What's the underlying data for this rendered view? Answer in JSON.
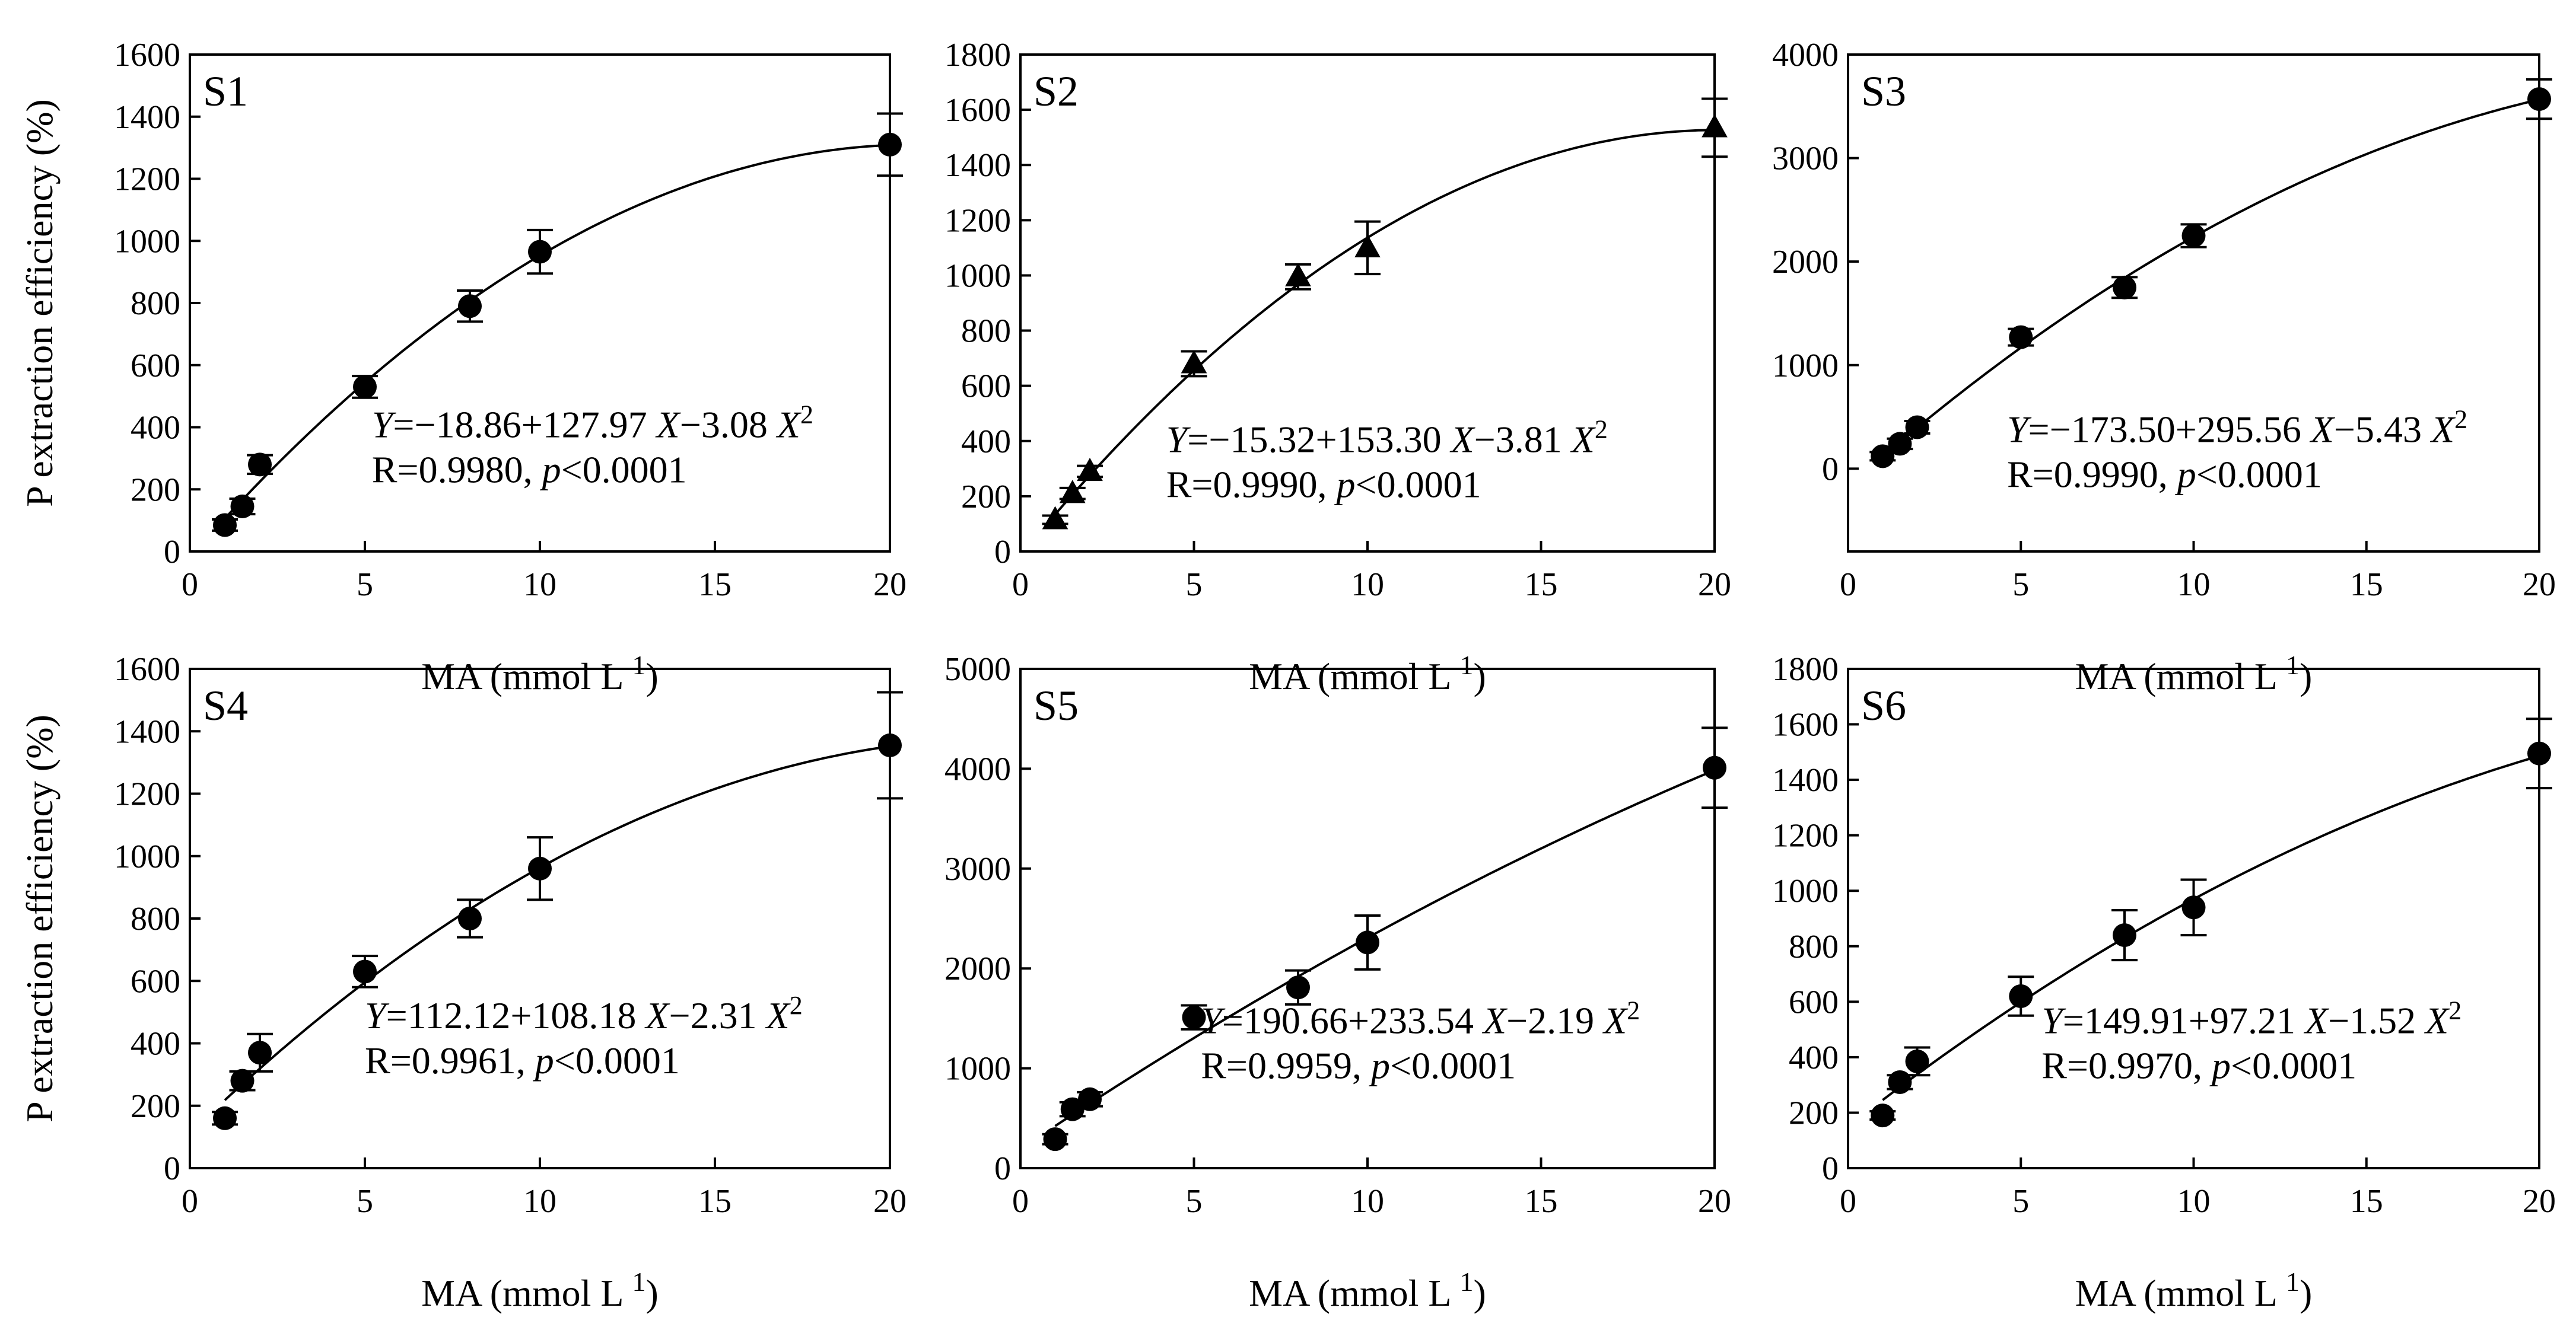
{
  "chart_data": [
    {
      "type": "scatter",
      "panel": "S1",
      "marker": "circle",
      "xlabel": "MA (mmol L",
      "xlabel_sup": "1",
      "ylabel": "P extraction efficiency (%)",
      "xlim": [
        0,
        20
      ],
      "ylim": [
        0,
        1600
      ],
      "xticks": [
        0,
        5,
        10,
        15,
        20
      ],
      "yticks": [
        0,
        200,
        400,
        600,
        800,
        1000,
        1200,
        1400,
        1600
      ],
      "x": [
        1,
        1.5,
        2,
        5,
        8,
        10,
        20
      ],
      "y": [
        85,
        145,
        280,
        530,
        790,
        965,
        1310
      ],
      "yerr": [
        18,
        25,
        30,
        35,
        50,
        70,
        100
      ],
      "fit": {
        "a": -18.86,
        "b": 127.97,
        "c": -3.08
      },
      "eq_text": [
        "Y",
        "=−18.86+127.97 ",
        "X",
        "−3.08 ",
        "X",
        "2"
      ],
      "r_text": [
        "R=0.9980, ",
        "p",
        "<0.0001"
      ]
    },
    {
      "type": "scatter",
      "panel": "S2",
      "marker": "triangle",
      "xlabel": "MA (mmol L",
      "xlabel_sup": "1",
      "ylabel": "",
      "xlim": [
        0,
        20
      ],
      "ylim": [
        0,
        1800
      ],
      "xticks": [
        0,
        5,
        10,
        15,
        20
      ],
      "yticks": [
        0,
        200,
        400,
        600,
        800,
        1000,
        1200,
        1400,
        1600,
        1800
      ],
      "x": [
        1,
        1.5,
        2,
        5,
        8,
        10,
        20
      ],
      "y": [
        115,
        210,
        290,
        680,
        995,
        1100,
        1535
      ],
      "yerr": [
        15,
        20,
        20,
        45,
        45,
        95,
        105
      ],
      "fit": {
        "a": -15.32,
        "b": 153.3,
        "c": -3.81
      },
      "eq_text": [
        "Y",
        "=−15.32+153.30 ",
        "X",
        "−3.81 ",
        "X",
        "2"
      ],
      "r_text": [
        "R=0.9990, ",
        "p",
        "<0.0001"
      ]
    },
    {
      "type": "scatter",
      "panel": "S3",
      "marker": "circle",
      "xlabel": "MA (mmol L",
      "xlabel_sup": "1",
      "ylabel": "",
      "xlim": [
        0,
        20
      ],
      "ylim": [
        -800,
        4000
      ],
      "xticks": [
        0,
        5,
        10,
        15,
        20
      ],
      "yticks": [
        0,
        1000,
        2000,
        3000,
        4000
      ],
      "x": [
        1,
        1.5,
        2,
        5,
        8,
        10,
        20
      ],
      "y": [
        120,
        240,
        400,
        1270,
        1750,
        2250,
        3570
      ],
      "yerr": [
        40,
        50,
        60,
        80,
        100,
        110,
        190
      ],
      "fit": {
        "a": -173.5,
        "b": 295.56,
        "c": -5.43
      },
      "eq_text": [
        "Y",
        "=−173.50+295.56 ",
        "X",
        "−5.43 ",
        "X",
        "2"
      ],
      "r_text": [
        "R=0.9990, ",
        "p",
        "<0.0001"
      ]
    },
    {
      "type": "scatter",
      "panel": "S4",
      "marker": "circle",
      "xlabel": "MA (mmol L",
      "xlabel_sup": "1",
      "ylabel": "P extraction efficiency (%)",
      "xlim": [
        0,
        20
      ],
      "ylim": [
        0,
        1600
      ],
      "xticks": [
        0,
        5,
        10,
        15,
        20
      ],
      "yticks": [
        0,
        200,
        400,
        600,
        800,
        1000,
        1200,
        1400,
        1600
      ],
      "x": [
        1,
        1.5,
        2,
        5,
        8,
        10,
        20
      ],
      "y": [
        160,
        280,
        370,
        630,
        800,
        960,
        1355
      ],
      "yerr": [
        20,
        30,
        60,
        50,
        60,
        100,
        170
      ],
      "fit": {
        "a": 112.12,
        "b": 108.18,
        "c": -2.31
      },
      "eq_text": [
        "Y",
        "=112.12+108.18 ",
        "X",
        "−2.31 ",
        "X",
        "2"
      ],
      "r_text": [
        "R=0.9961, ",
        "p",
        "<0.0001"
      ]
    },
    {
      "type": "scatter",
      "panel": "S5",
      "marker": "circle",
      "xlabel": "MA (mmol L",
      "xlabel_sup": "1",
      "ylabel": "",
      "xlim": [
        0,
        20
      ],
      "ylim": [
        0,
        5000
      ],
      "xticks": [
        0,
        5,
        10,
        15,
        20
      ],
      "yticks": [
        0,
        1000,
        2000,
        3000,
        4000,
        5000
      ],
      "x": [
        1,
        1.5,
        2,
        5,
        8,
        10,
        20
      ],
      "y": [
        290,
        590,
        690,
        1510,
        1810,
        2260,
        4010
      ],
      "yerr": [
        50,
        70,
        70,
        120,
        170,
        270,
        400
      ],
      "fit": {
        "a": 190.66,
        "b": 233.54,
        "c": -2.19
      },
      "eq_text": [
        "Y",
        "=190.66+233.54 ",
        "X",
        "−2.19 ",
        "X",
        "2"
      ],
      "r_text": [
        "R=0.9959, ",
        "p",
        "<0.0001"
      ]
    },
    {
      "type": "scatter",
      "panel": "S6",
      "marker": "circle",
      "xlabel": "MA (mmol L",
      "xlabel_sup": "1",
      "ylabel": "",
      "xlim": [
        0,
        20
      ],
      "ylim": [
        0,
        1800
      ],
      "xticks": [
        0,
        5,
        10,
        15,
        20
      ],
      "yticks": [
        0,
        200,
        400,
        600,
        800,
        1000,
        1200,
        1400,
        1600,
        1800
      ],
      "x": [
        1,
        1.5,
        2,
        5,
        8,
        10,
        20
      ],
      "y": [
        190,
        310,
        385,
        620,
        840,
        940,
        1495
      ],
      "yerr": [
        15,
        25,
        50,
        70,
        90,
        100,
        125
      ],
      "fit": {
        "a": 149.91,
        "b": 97.21,
        "c": -1.52
      },
      "eq_text": [
        "Y",
        "=149.91+97.21 ",
        "X",
        "−1.52 ",
        "X",
        "2"
      ],
      "r_text": [
        "R=0.9970, ",
        "p",
        "<0.0001"
      ]
    }
  ]
}
